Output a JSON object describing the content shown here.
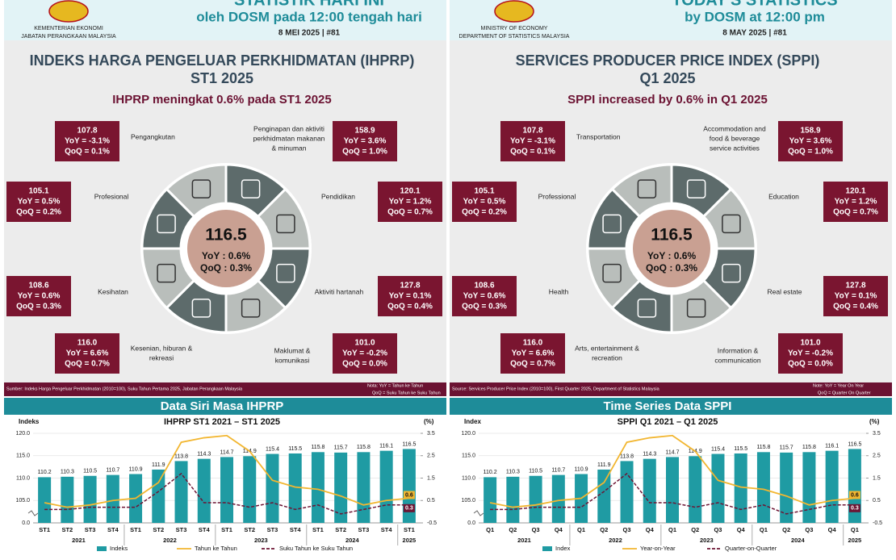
{
  "panels": [
    {
      "header": {
        "banner_top": "STATISTIK HARI INI",
        "banner": "oleh DOSM pada 12:00 tengah hari",
        "ministry": [
          "KEMENTERIAN EKONOMI",
          "JABATAN PERANGKAAN MALAYSIA"
        ],
        "date": "8 MEI 2025   |   #81"
      },
      "title": [
        "INDEKS HARGA PENGELUAR PERKHIDMATAN (IHPRP)",
        "ST1 2025"
      ],
      "subtitle": "IHPRP meningkat 0.6% pada ST1 2025",
      "center": [
        "116.5",
        "YoY : 0.6%",
        "QoQ : 0.3%"
      ],
      "sectors": [
        {
          "label": [
            "Pengangkutan"
          ],
          "box": [
            "107.8",
            "YoY = -3.1%",
            "QoQ = 0.1%"
          ]
        },
        {
          "label": [
            "Penginapan dan aktiviti",
            "perkhidmatan makanan",
            "& minuman"
          ],
          "box": [
            "158.9",
            "YoY = 3.6%",
            "QoQ = 1.0%"
          ]
        },
        {
          "label": [
            "Pendidikan"
          ],
          "box": [
            "120.1",
            "YoY = 1.2%",
            "QoQ = 0.7%"
          ]
        },
        {
          "label": [
            "Aktiviti hartanah"
          ],
          "box": [
            "127.8",
            "YoY = 0.1%",
            "QoQ = 0.4%"
          ]
        },
        {
          "label": [
            "Maklumat &",
            "komunikasi"
          ],
          "box": [
            "101.0",
            "YoY = -0.2%",
            "QoQ = 0.0%"
          ]
        },
        {
          "label": [
            "Kesenian, hiburan &",
            "rekreasi"
          ],
          "box": [
            "116.0",
            "YoY = 6.6%",
            "QoQ = 0.7%"
          ]
        },
        {
          "label": [
            "Kesihatan"
          ],
          "box": [
            "108.6",
            "YoY = 0.6%",
            "QoQ = 0.3%"
          ]
        },
        {
          "label": [
            "Profesional"
          ],
          "box": [
            "105.1",
            "YoY = 0.5%",
            "QoQ = 0.2%"
          ]
        }
      ],
      "source": "Sumber: Indeks Harga Pengeluar Perkhidmatan (2010=100), Suku Tahun Pertama 2025, Jabatan Perangkaan Malaysia",
      "note": [
        "Nota: YoY = Tahun ke Tahun",
        "QoQ = Suku Tahun ke Suku Tahun"
      ],
      "chart": {
        "type": "bar",
        "heading": "Data Siri Masa IHPRP",
        "title": "IHPRP ST1 2021 – ST1 2025",
        "ylabel": "Indeks",
        "y2label": "(%)",
        "categories": [
          "ST1",
          "ST2",
          "ST3",
          "ST4",
          "ST1",
          "ST2",
          "ST3",
          "ST4",
          "ST1",
          "ST2",
          "ST3",
          "ST4",
          "ST1",
          "ST2",
          "ST3",
          "ST4",
          "ST1"
        ],
        "groups": [
          "2021",
          "2022",
          "2023",
          "2024",
          "2025"
        ],
        "ylim": [
          0,
          120
        ],
        "yticks": [
          {
            "value": 0,
            "label": "0.0"
          },
          {
            "value": 105,
            "label": "105.0"
          },
          {
            "value": 110,
            "label": "110.0"
          },
          {
            "value": 115,
            "label": "115.0"
          },
          {
            "value": 120,
            "label": "120.0"
          }
        ],
        "y2lim": [
          -0.5,
          3.5
        ],
        "y2ticks": [
          -0.5,
          0.5,
          1.5,
          2.5,
          3.5
        ],
        "series": [
          {
            "name": "Indeks",
            "type": "bar",
            "color": "#1f9ba3",
            "values": [
              110.2,
              110.3,
              110.5,
              110.7,
              110.9,
              111.9,
              113.8,
              114.3,
              114.7,
              114.9,
              115.4,
              115.5,
              115.8,
              115.7,
              115.8,
              116.1,
              116.5
            ]
          },
          {
            "name": "Tahun ke Tahun",
            "type": "line",
            "axis": "y2",
            "color": "#f2b630",
            "values": [
              0.4,
              0.2,
              0.3,
              0.5,
              0.6,
              1.3,
              3.1,
              3.3,
              3.4,
              2.7,
              1.4,
              1.1,
              1.0,
              0.7,
              0.3,
              0.5,
              0.6
            ]
          },
          {
            "name": "Suku Tahun ke Suku Tahun",
            "type": "line",
            "axis": "y2",
            "dashed": true,
            "color": "#6d1534",
            "values": [
              0.1,
              0.1,
              0.2,
              0.2,
              0.2,
              0.9,
              1.7,
              0.4,
              0.4,
              0.2,
              0.4,
              0.1,
              0.3,
              -0.1,
              0.1,
              0.3,
              0.3
            ]
          }
        ]
      }
    },
    {
      "header": {
        "banner_top": "TODAY'S STATISTICS",
        "banner": "by DOSM at 12:00 pm",
        "ministry": [
          "MINISTRY OF ECONOMY",
          "DEPARTMENT OF STATISTICS MALAYSIA"
        ],
        "date": "8 MAY 2025   |   #81"
      },
      "title": [
        "SERVICES PRODUCER PRICE INDEX (SPPI)",
        "Q1 2025"
      ],
      "subtitle": "SPPI increased by 0.6% in Q1 2025",
      "center": [
        "116.5",
        "YoY : 0.6%",
        "QoQ : 0.3%"
      ],
      "sectors": [
        {
          "label": [
            "Transportation"
          ],
          "box": [
            "107.8",
            "YoY = -3.1%",
            "QoQ = 0.1%"
          ]
        },
        {
          "label": [
            "Accommodation and",
            "food & beverage",
            "service activities"
          ],
          "box": [
            "158.9",
            "YoY = 3.6%",
            "QoQ = 1.0%"
          ]
        },
        {
          "label": [
            "Education"
          ],
          "box": [
            "120.1",
            "YoY = 1.2%",
            "QoQ = 0.7%"
          ]
        },
        {
          "label": [
            "Real estate"
          ],
          "box": [
            "127.8",
            "YoY = 0.1%",
            "QoQ = 0.4%"
          ]
        },
        {
          "label": [
            "Information &",
            "communication"
          ],
          "box": [
            "101.0",
            "YoY = -0.2%",
            "QoQ = 0.0%"
          ]
        },
        {
          "label": [
            "Arts, entertainment &",
            "recreation"
          ],
          "box": [
            "116.0",
            "YoY = 6.6%",
            "QoQ = 0.7%"
          ]
        },
        {
          "label": [
            "Health"
          ],
          "box": [
            "108.6",
            "YoY = 0.6%",
            "QoQ = 0.3%"
          ]
        },
        {
          "label": [
            "Professional"
          ],
          "box": [
            "105.1",
            "YoY = 0.5%",
            "QoQ = 0.2%"
          ]
        }
      ],
      "source": "Source: Services Producer Price Index (2010=100), First Quarter 2025, Department of Statistics Malaysia",
      "note": [
        "Note: YoY = Year On Year",
        "QoQ = Quarter On Quarter"
      ],
      "chart": {
        "type": "bar",
        "heading": "Time Series Data SPPI",
        "title": "SPPI Q1 2021 – Q1 2025",
        "ylabel": "Index",
        "y2label": "(%)",
        "categories": [
          "Q1",
          "Q2",
          "Q3",
          "Q4",
          "Q1",
          "Q2",
          "Q3",
          "Q4",
          "Q1",
          "Q2",
          "Q3",
          "Q4",
          "Q1",
          "Q2",
          "Q3",
          "Q4",
          "Q1"
        ],
        "groups": [
          "2021",
          "2022",
          "2023",
          "2024",
          "2025"
        ],
        "ylim": [
          0,
          120
        ],
        "yticks": [
          {
            "value": 0,
            "label": "0.0"
          },
          {
            "value": 105,
            "label": "105.0"
          },
          {
            "value": 110,
            "label": "110.0"
          },
          {
            "value": 115,
            "label": "115.0"
          },
          {
            "value": 120,
            "label": "120.0"
          }
        ],
        "y2lim": [
          -0.5,
          3.5
        ],
        "y2ticks": [
          -0.5,
          0.5,
          1.5,
          2.5,
          3.5
        ],
        "series": [
          {
            "name": "Index",
            "type": "bar",
            "color": "#1f9ba3",
            "values": [
              110.2,
              110.3,
              110.5,
              110.7,
              110.9,
              111.9,
              113.8,
              114.3,
              114.7,
              114.9,
              115.4,
              115.5,
              115.8,
              115.7,
              115.8,
              116.1,
              116.5
            ]
          },
          {
            "name": "Year-on-Year",
            "type": "line",
            "axis": "y2",
            "color": "#f2b630",
            "values": [
              0.4,
              0.2,
              0.3,
              0.5,
              0.6,
              1.3,
              3.1,
              3.3,
              3.4,
              2.7,
              1.4,
              1.1,
              1.0,
              0.7,
              0.3,
              0.5,
              0.6
            ]
          },
          {
            "name": "Quarter-on-Quarter",
            "type": "line",
            "axis": "y2",
            "dashed": true,
            "color": "#6d1534",
            "values": [
              0.1,
              0.1,
              0.2,
              0.2,
              0.2,
              0.9,
              1.7,
              0.4,
              0.4,
              0.2,
              0.4,
              0.1,
              0.3,
              -0.1,
              0.1,
              0.3,
              0.3
            ]
          }
        ]
      }
    }
  ]
}
